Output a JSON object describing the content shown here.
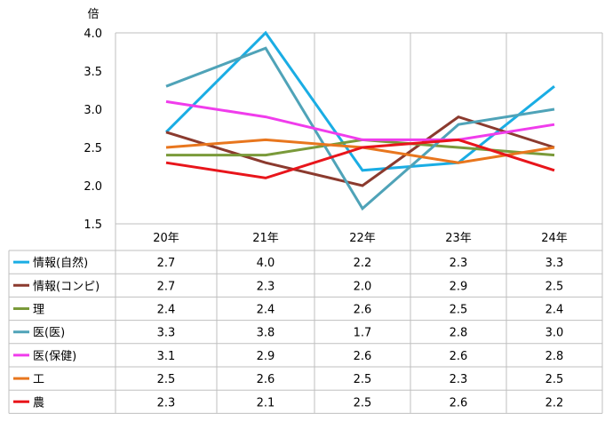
{
  "chart_data": {
    "type": "line",
    "ylabel": "倍",
    "ylim": [
      1.5,
      4.0
    ],
    "yticks": [
      "1.5",
      "2.0",
      "2.5",
      "3.0",
      "3.5",
      "4.0"
    ],
    "categories": [
      "20年",
      "21年",
      "22年",
      "23年",
      "24年"
    ],
    "grid": "vertical",
    "legend": "data-table",
    "series": [
      {
        "name": "情報(自然)",
        "color": "#1AADE4",
        "values": [
          2.7,
          4.0,
          2.2,
          2.3,
          3.3
        ]
      },
      {
        "name": "情報(コンピ)",
        "color": "#8B3A2E",
        "values": [
          2.7,
          2.3,
          2.0,
          2.9,
          2.5
        ]
      },
      {
        "name": "理",
        "color": "#7A9A3A",
        "values": [
          2.4,
          2.4,
          2.6,
          2.5,
          2.4
        ]
      },
      {
        "name": "医(医)",
        "color": "#4FA3B8",
        "values": [
          3.3,
          3.8,
          1.7,
          2.8,
          3.0
        ]
      },
      {
        "name": "医(保健)",
        "color": "#F03CEC",
        "values": [
          3.1,
          2.9,
          2.6,
          2.6,
          2.8
        ]
      },
      {
        "name": "工",
        "color": "#E8761E",
        "values": [
          2.5,
          2.6,
          2.5,
          2.3,
          2.5
        ]
      },
      {
        "name": "農",
        "color": "#E8151B",
        "values": [
          2.3,
          2.1,
          2.5,
          2.6,
          2.2
        ]
      }
    ],
    "table_values": [
      [
        "2.7",
        "4.0",
        "2.2",
        "2.3",
        "3.3"
      ],
      [
        "2.7",
        "2.3",
        "2.0",
        "2.9",
        "2.5"
      ],
      [
        "2.4",
        "2.4",
        "2.6",
        "2.5",
        "2.4"
      ],
      [
        "3.3",
        "3.8",
        "1.7",
        "2.8",
        "3.0"
      ],
      [
        "3.1",
        "2.9",
        "2.6",
        "2.6",
        "2.8"
      ],
      [
        "2.5",
        "2.6",
        "2.5",
        "2.3",
        "2.5"
      ],
      [
        "2.3",
        "2.1",
        "2.5",
        "2.6",
        "2.2"
      ]
    ]
  }
}
